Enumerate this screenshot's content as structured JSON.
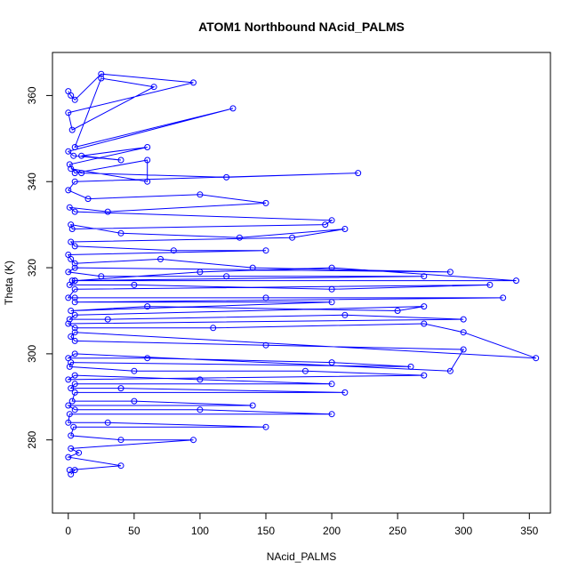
{
  "chart_data": {
    "type": "line",
    "title": "ATOM1 Northbound NAcid_PALMS",
    "xlabel": "NAcid_PALMS",
    "ylabel": "Theta (K)",
    "xlim": [
      -12,
      366
    ],
    "ylim": [
      263,
      370
    ],
    "xticks": [
      0,
      50,
      100,
      150,
      200,
      250,
      300,
      350
    ],
    "yticks": [
      280,
      300,
      320,
      340,
      360
    ],
    "grid": false,
    "legend": "none",
    "series_color": "#0000ff",
    "markers": "open-circle",
    "series": [
      {
        "x": [
          0,
          2,
          5,
          25,
          95,
          0,
          3,
          65,
          25,
          5,
          125,
          0,
          4,
          40,
          10,
          60,
          1,
          5,
          60,
          60,
          2,
          10,
          120,
          220,
          5,
          0,
          15,
          100,
          150,
          30,
          1,
          5,
          200,
          195,
          3,
          2,
          40,
          130,
          210,
          170,
          2,
          5,
          80,
          150,
          0,
          2,
          5,
          70,
          140,
          290,
          5,
          0,
          25,
          120,
          270,
          3,
          5,
          100,
          200,
          340,
          5,
          1,
          50,
          200,
          320,
          5,
          0,
          5,
          150,
          330,
          5,
          200,
          2,
          60,
          250,
          270,
          5,
          1,
          30,
          210,
          300,
          0,
          5,
          110,
          270,
          300,
          355,
          5,
          2,
          5,
          150,
          300,
          290,
          5,
          0,
          60,
          200,
          260,
          2,
          1,
          50,
          180,
          270,
          0,
          5,
          100,
          200,
          5,
          2,
          40,
          210,
          5,
          3,
          50,
          140,
          0,
          5,
          100,
          200,
          1,
          0,
          30,
          150,
          4,
          2,
          40,
          95,
          2,
          8,
          0,
          40,
          1,
          5,
          2
        ],
        "y": [
          361,
          360,
          359,
          365,
          363,
          356,
          352,
          362,
          364,
          348,
          357,
          347,
          346,
          345,
          346,
          348,
          344,
          342,
          345,
          340,
          343,
          342,
          341,
          342,
          340,
          338,
          336,
          337,
          335,
          333,
          334,
          333,
          331,
          330,
          329,
          330,
          328,
          327,
          329,
          327,
          326,
          325,
          324,
          324,
          323,
          322,
          321,
          322,
          320,
          319,
          320,
          319,
          318,
          318,
          318,
          317,
          317,
          319,
          320,
          317,
          317,
          316,
          316,
          315,
          316,
          315,
          313,
          313,
          313,
          313,
          312,
          312,
          310,
          311,
          310,
          311,
          309,
          308,
          308,
          309,
          308,
          307,
          306,
          306,
          307,
          305,
          299,
          305,
          304,
          303,
          302,
          301,
          296,
          300,
          299,
          299,
          298,
          297,
          298,
          297,
          296,
          296,
          295,
          294,
          295,
          294,
          293,
          293,
          292,
          292,
          291,
          291,
          289,
          289,
          288,
          288,
          287,
          287,
          286,
          286,
          284,
          284,
          283,
          283,
          281,
          280,
          280,
          278,
          277,
          276,
          274,
          273,
          273,
          272
        ]
      }
    ]
  }
}
